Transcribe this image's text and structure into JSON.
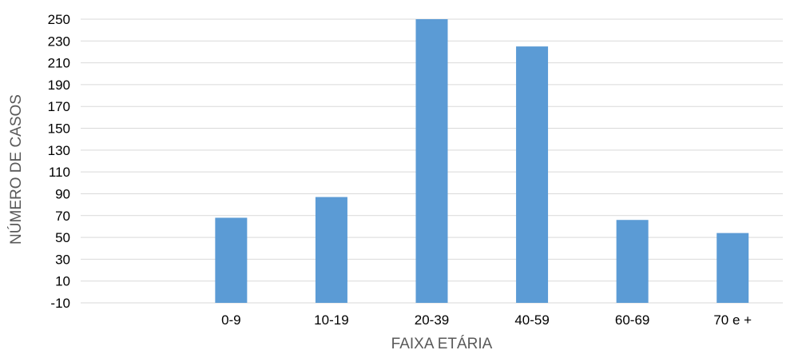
{
  "chart_data": {
    "type": "bar",
    "title": "",
    "xlabel": "FAIXA ETÁRIA",
    "ylabel": "NÚMERO DE CASOS",
    "categories": [
      "",
      "0-9",
      "10-19",
      "20-39",
      "40-59",
      "60-69",
      "70 e +"
    ],
    "values": [
      null,
      68,
      87,
      250,
      225,
      66,
      54
    ],
    "y_ticks": [
      -10,
      10,
      30,
      50,
      70,
      90,
      110,
      130,
      150,
      170,
      190,
      210,
      230,
      250
    ],
    "ylim": [
      -10,
      250
    ],
    "grid": true,
    "legend": "none",
    "bar_color": "#5B9BD5",
    "grid_color": "#D9D9D9"
  }
}
